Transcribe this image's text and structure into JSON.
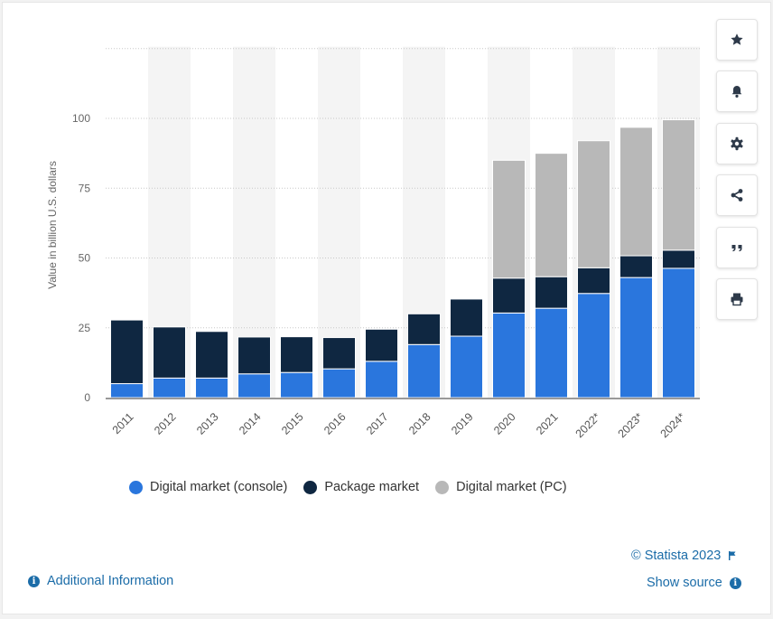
{
  "chart_data": {
    "type": "bar",
    "stacked": true,
    "categories": [
      "2011",
      "2012",
      "2013",
      "2014",
      "2015",
      "2016",
      "2017",
      "2018",
      "2019",
      "2020",
      "2021",
      "2022*",
      "2023*",
      "2024*"
    ],
    "series": [
      {
        "name": "Digital market (console)",
        "color": "#2a76dd",
        "values": [
          5,
          7,
          7,
          8.5,
          9,
          10.3,
          13,
          19,
          22,
          30.3,
          32,
          37.3,
          43,
          46.3
        ]
      },
      {
        "name": "Package market",
        "color": "#0f2741",
        "values": [
          22.8,
          18.3,
          16.7,
          13.2,
          12.8,
          11.2,
          11.5,
          11,
          13.3,
          12.5,
          11.3,
          9.2,
          7.8,
          6.5
        ]
      },
      {
        "name": "Digital market (PC)",
        "color": "#b8b8b8",
        "values": [
          0,
          0,
          0,
          0,
          0,
          0,
          0,
          0,
          0,
          42.2,
          44.2,
          45.5,
          46,
          46.7
        ]
      }
    ],
    "title": "",
    "xlabel": "",
    "ylabel": "Value in billion U.S. dollars",
    "ylim": [
      0,
      125
    ],
    "yticks": [
      0,
      25,
      50,
      75,
      100
    ],
    "grid": true,
    "legend_position": "bottom"
  },
  "legend": [
    {
      "label": "Digital market (console)",
      "color": "#2a76dd"
    },
    {
      "label": "Package market",
      "color": "#0f2741"
    },
    {
      "label": "Digital market (PC)",
      "color": "#b8b8b8"
    }
  ],
  "footer": {
    "copyright": "© Statista 2023",
    "additional_info": "Additional Information",
    "show_source": "Show source"
  },
  "toolbar": {
    "icons": [
      "star-icon",
      "bell-icon",
      "gear-icon",
      "share-icon",
      "quote-icon",
      "print-icon"
    ]
  }
}
